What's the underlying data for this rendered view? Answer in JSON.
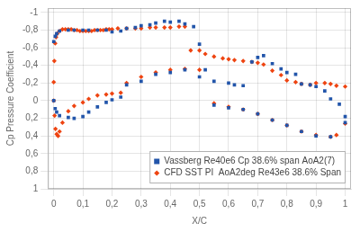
{
  "chart_data": {
    "type": "scatter",
    "x_label": "X/C",
    "y_label": "Cp Pressure Coefficient",
    "xlim": [
      -0.02,
      1.02
    ],
    "ylim": [
      1.0,
      -1.05
    ],
    "xticks": [
      0,
      {
        "value": 0.1,
        "label": "0,1"
      },
      {
        "value": 0.2,
        "label": "0,2"
      },
      {
        "value": 0.3,
        "label": "0,3"
      },
      {
        "value": 0.4,
        "label": "0,4"
      },
      {
        "value": 0.5,
        "label": "0,5"
      },
      {
        "value": 0.6,
        "label": "0,6"
      },
      {
        "value": 0.7,
        "label": "0,7"
      },
      {
        "value": 0.8,
        "label": "0,8"
      },
      {
        "value": 0.9,
        "label": "0,9"
      },
      1
    ],
    "yticks": [
      -1,
      {
        "value": -0.8,
        "label": "-0,8"
      },
      {
        "value": -0.6,
        "label": "-0,6"
      },
      {
        "value": -0.4,
        "label": "-0,4"
      },
      {
        "value": -0.2,
        "label": "-0,2"
      },
      0,
      {
        "value": 0.2,
        "label": "0,2"
      },
      {
        "value": 0.4,
        "label": "0,4"
      },
      {
        "value": 0.6,
        "label": "0,6"
      },
      {
        "value": 0.8,
        "label": "0,8"
      },
      1
    ],
    "grid": true,
    "legend": "lower right",
    "series": [
      {
        "name": "Vassberg Re40e6 Cp 38.6% span AoA2(7)",
        "color": "#2255aa",
        "marker": "square",
        "x": [
          0.0,
          0.005,
          0.01,
          0.02,
          0.05,
          0.07,
          0.1,
          0.12,
          0.15,
          0.18,
          0.2,
          0.23,
          0.25,
          0.28,
          0.3,
          0.33,
          0.35,
          0.38,
          0.4,
          0.43,
          0.45,
          0.48,
          0.5,
          0.52,
          0.55,
          0.6,
          0.62,
          0.65,
          0.68,
          0.7,
          0.72,
          0.75,
          0.78,
          0.8,
          0.83,
          0.85,
          0.88,
          0.9,
          0.93,
          0.95,
          0.98,
          1.0,
          0.0,
          0.005,
          0.01,
          0.02,
          0.05,
          0.07,
          0.1,
          0.12,
          0.15,
          0.18,
          0.2,
          0.23,
          0.25,
          0.3,
          0.35,
          0.4,
          0.45,
          0.5,
          0.55,
          0.6,
          0.65,
          0.7,
          0.75,
          0.8,
          0.85,
          0.9,
          0.95,
          1.0
        ],
        "values": [
          -0.67,
          -0.73,
          -0.76,
          -0.79,
          -0.8,
          -0.8,
          -0.8,
          -0.8,
          -0.8,
          -0.8,
          -0.78,
          -0.79,
          -0.82,
          -0.83,
          -0.85,
          -0.86,
          -0.88,
          -0.9,
          -0.89,
          -0.9,
          -0.87,
          -0.84,
          -0.64,
          -0.35,
          -0.22,
          -0.2,
          -0.18,
          -0.17,
          -0.44,
          -0.49,
          -0.51,
          -0.42,
          -0.36,
          -0.32,
          -0.3,
          -0.19,
          -0.18,
          -0.16,
          -0.11,
          -0.02,
          0.04,
          0.18,
          0.0,
          0.09,
          0.13,
          0.17,
          0.19,
          0.2,
          0.18,
          0.13,
          0.07,
          0.02,
          -0.01,
          -0.04,
          -0.18,
          -0.22,
          -0.3,
          -0.32,
          -0.35,
          -0.27,
          0.05,
          0.08,
          0.1,
          0.15,
          0.22,
          0.28,
          0.35,
          0.4,
          0.41,
          0.25
        ]
      },
      {
        "name": "CFD SST PI  AoA2deg Re43e6 38.6% Span",
        "color": "#ee4411",
        "marker": "diamond",
        "x": [
          0.0,
          0.002,
          0.005,
          0.008,
          0.012,
          0.02,
          0.03,
          0.04,
          0.05,
          0.06,
          0.07,
          0.08,
          0.09,
          0.1,
          0.11,
          0.12,
          0.13,
          0.14,
          0.15,
          0.16,
          0.17,
          0.18,
          0.19,
          0.2,
          0.22,
          0.25,
          0.28,
          0.3,
          0.33,
          0.35,
          0.38,
          0.4,
          0.43,
          0.45,
          0.47,
          0.5,
          0.52,
          0.55,
          0.58,
          0.6,
          0.62,
          0.65,
          0.68,
          0.7,
          0.72,
          0.75,
          0.78,
          0.8,
          0.83,
          0.85,
          0.88,
          0.9,
          0.93,
          0.95,
          0.97,
          1.0,
          0.0,
          0.003,
          0.006,
          0.01,
          0.015,
          0.02,
          0.03,
          0.05,
          0.07,
          0.1,
          0.12,
          0.15,
          0.18,
          0.2,
          0.23,
          0.25,
          0.3,
          0.35,
          0.4,
          0.45,
          0.5,
          0.55,
          0.6,
          0.65,
          0.7,
          0.75,
          0.8,
          0.85,
          0.9,
          0.95,
          0.97,
          1.0
        ],
        "values": [
          -0.21,
          -0.45,
          -0.65,
          -0.72,
          -0.76,
          -0.79,
          -0.81,
          -0.81,
          -0.81,
          -0.81,
          -0.8,
          -0.8,
          -0.79,
          -0.79,
          -0.79,
          -0.79,
          -0.79,
          -0.8,
          -0.8,
          -0.8,
          -0.8,
          -0.81,
          -0.81,
          -0.81,
          -0.82,
          -0.82,
          -0.82,
          -0.82,
          -0.83,
          -0.83,
          -0.83,
          -0.83,
          -0.84,
          -0.84,
          -0.57,
          -0.57,
          -0.53,
          -0.5,
          -0.48,
          -0.47,
          -0.46,
          -0.45,
          -0.44,
          -0.43,
          -0.41,
          -0.34,
          -0.29,
          -0.23,
          -0.21,
          -0.19,
          -0.18,
          -0.2,
          -0.2,
          -0.19,
          -0.17,
          -0.16,
          0.0,
          0.17,
          0.32,
          0.38,
          0.4,
          0.35,
          0.25,
          0.12,
          0.06,
          0.02,
          -0.02,
          -0.06,
          -0.07,
          -0.08,
          -0.09,
          -0.2,
          -0.27,
          -0.32,
          -0.35,
          -0.36,
          -0.35,
          0.03,
          0.07,
          0.1,
          0.15,
          0.22,
          0.28,
          0.35,
          0.39,
          0.41,
          0.39,
          0.26
        ]
      }
    ]
  }
}
